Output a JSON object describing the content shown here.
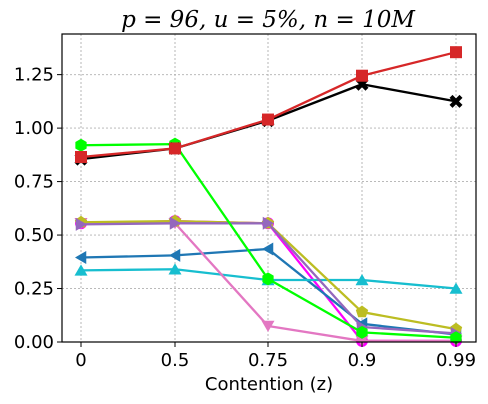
{
  "chart_data": {
    "type": "line",
    "title": "p = 96, u = 5%, n = 10M",
    "xlabel": "Contention (z)",
    "ylabel": "",
    "categories": [
      "0",
      "0.5",
      "0.75",
      "0.9",
      "0.99"
    ],
    "y_ticks": [
      "0.00",
      "0.25",
      "0.50",
      "0.75",
      "1.00",
      "1.25"
    ],
    "ylim": [
      0,
      1.44
    ],
    "grid": true,
    "legend": "none",
    "series": [
      {
        "color": "#ff00ff",
        "marker": "circle",
        "values": [
          0.555,
          0.565,
          0.555,
          0.005,
          0.005
        ]
      },
      {
        "color": "#1f77b4",
        "marker": "triangle-left",
        "values": [
          0.395,
          0.405,
          0.435,
          0.085,
          0.035
        ]
      },
      {
        "color": "#17becf",
        "marker": "triangle-up",
        "values": [
          0.335,
          0.34,
          0.29,
          0.29,
          0.25
        ]
      },
      {
        "color": "#e377c2",
        "marker": "triangle-down",
        "values": [
          0.555,
          0.555,
          0.075,
          0.005,
          0.005
        ]
      },
      {
        "color": "#bcbd22",
        "marker": "pentagon",
        "values": [
          0.56,
          0.565,
          0.555,
          0.14,
          0.06
        ]
      },
      {
        "color": "#9467bd",
        "marker": "triangle-right",
        "values": [
          0.55,
          0.555,
          0.555,
          0.07,
          0.04
        ]
      },
      {
        "color": "#00ff00",
        "marker": "hexagon",
        "values": [
          0.92,
          0.925,
          0.295,
          0.045,
          0.02
        ]
      },
      {
        "color": "#000000",
        "marker": "x",
        "values": [
          0.855,
          0.905,
          1.035,
          1.205,
          1.125
        ]
      },
      {
        "color": "#d62728",
        "marker": "square",
        "values": [
          0.865,
          0.905,
          1.04,
          1.245,
          1.355
        ]
      }
    ]
  }
}
